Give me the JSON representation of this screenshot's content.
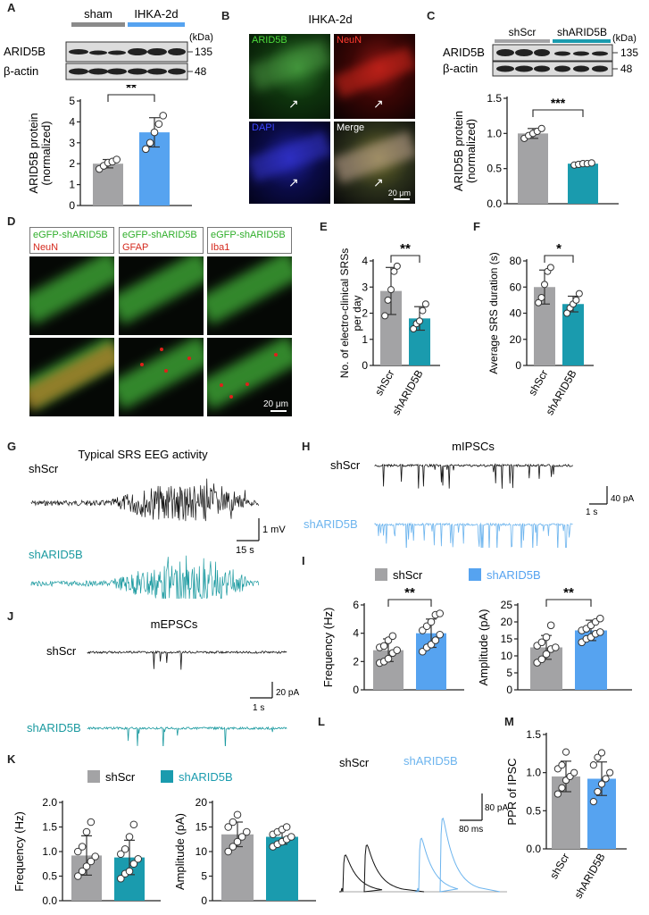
{
  "panel_letters": {
    "A": "A",
    "B": "B",
    "C": "C",
    "D": "D",
    "E": "E",
    "F": "F",
    "G": "G",
    "H": "H",
    "I": "I",
    "J": "J",
    "K": "K",
    "L": "L",
    "M": "M"
  },
  "colors": {
    "grey": "#a3a3a5",
    "blue": "#56a3f0",
    "teal": "#1a9bae",
    "tealtrace": "#1b9aa0",
    "black": "#111111",
    "lightblue": "#6cb4ee"
  },
  "panelA": {
    "groups": [
      "sham",
      "IHKA-2d"
    ],
    "rows": [
      "ARID5B",
      "β-actin"
    ],
    "kda_unit": "(kDa)",
    "kda": [
      "135",
      "48"
    ],
    "sig": "**"
  },
  "panelB": {
    "title": "IHKA-2d",
    "channels": [
      "ARID5B",
      "NeuN",
      "DAPI",
      "Merge"
    ],
    "scale": "20 μm"
  },
  "panelC": {
    "groups": [
      "shScr",
      "shARID5B"
    ],
    "rows": [
      "ARID5B",
      "β-actin"
    ],
    "kda_unit": "(kDa)",
    "kda": [
      "135",
      "48"
    ],
    "sig": "***"
  },
  "panelD": {
    "labels": [
      {
        "line1": "eGFP-shARID5B",
        "line2": "NeuN"
      },
      {
        "line1": "eGFP-shARID5B",
        "line2": "GFAP"
      },
      {
        "line1": "eGFP-shARID5B",
        "line2": "Iba1"
      }
    ],
    "scale": "20 μm"
  },
  "panelE": {
    "sig": "**"
  },
  "panelF": {
    "sig": "*"
  },
  "panelG": {
    "title": "Typical SRS EEG activity",
    "conditions": [
      "shScr",
      "shARID5B"
    ],
    "scale_y": "1 mV",
    "scale_x": "15 s"
  },
  "panelH": {
    "title": "mIPSCs",
    "conditions": [
      "shScr",
      "shARID5B"
    ],
    "scale_y": "40 pA",
    "scale_x": "1 s"
  },
  "panelI": {
    "legend": [
      "shScr",
      "shARID5B"
    ],
    "sig": [
      "**",
      "**"
    ]
  },
  "panelJ": {
    "title": "mEPSCs",
    "conditions": [
      "shScr",
      "shARID5B"
    ],
    "scale_y": "20 pA",
    "scale_x": "1 s"
  },
  "panelK": {
    "legend": [
      "shScr",
      "shARID5B"
    ]
  },
  "panelL": {
    "conditions": [
      "shScr",
      "shARID5B"
    ],
    "scale_y": "80 pA",
    "scale_x": "80 ms"
  },
  "chart_data": [
    {
      "id": "A",
      "type": "bar",
      "categories": [
        "sham",
        "IHKA-2d"
      ],
      "values": [
        2.0,
        3.5
      ],
      "errors": [
        0.2,
        0.7
      ],
      "ylabel": "ARID5B protein (normalized)",
      "ylim": [
        0,
        5
      ],
      "yticks": [
        0,
        1,
        2,
        3,
        4,
        5
      ],
      "points": [
        [
          1.75,
          1.9,
          2.05,
          2.1,
          2.2
        ],
        [
          2.7,
          3.0,
          3.5,
          3.9,
          4.3
        ]
      ]
    },
    {
      "id": "C",
      "type": "bar",
      "categories": [
        "shScr",
        "shARID5B"
      ],
      "values": [
        1.0,
        0.57
      ],
      "errors": [
        0.07,
        0.02
      ],
      "ylabel": "ARID5B protein (normalized)",
      "ylim": [
        0,
        1.5
      ],
      "yticks": [
        0.0,
        0.5,
        1.0,
        1.5
      ],
      "points": [
        [
          0.93,
          0.97,
          1.0,
          1.03,
          1.07
        ],
        [
          0.55,
          0.56,
          0.57,
          0.57,
          0.58
        ]
      ]
    },
    {
      "id": "E",
      "type": "bar",
      "categories": [
        "shScr",
        "shARID5B"
      ],
      "values": [
        2.85,
        1.8
      ],
      "errors": [
        0.9,
        0.45
      ],
      "ylabel": "No. of electro-clinical SRSs per day",
      "ylim": [
        0,
        4
      ],
      "yticks": [
        0,
        1,
        2,
        3,
        4
      ],
      "points": [
        [
          1.9,
          2.5,
          2.9,
          3.6,
          3.8
        ],
        [
          1.4,
          1.6,
          1.7,
          2.1,
          2.35
        ]
      ]
    },
    {
      "id": "F",
      "type": "bar",
      "categories": [
        "shScr",
        "shARID5B"
      ],
      "values": [
        60,
        47
      ],
      "errors": [
        13,
        6
      ],
      "ylabel": "Average SRS duration (s)",
      "ylim": [
        0,
        80
      ],
      "yticks": [
        0,
        20,
        40,
        60,
        80
      ],
      "points": [
        [
          48,
          52,
          62,
          72,
          75
        ],
        [
          40,
          44,
          47,
          50,
          55
        ]
      ]
    },
    {
      "id": "I-freq",
      "type": "bar",
      "categories": [
        "shScr",
        "shARID5B"
      ],
      "values": [
        2.8,
        4.0
      ],
      "errors": [
        0.8,
        1.0
      ],
      "ylabel": "Frequency (Hz)",
      "ylim": [
        0,
        6
      ],
      "yticks": [
        0,
        2,
        4,
        6
      ],
      "points": [
        [
          1.9,
          2.0,
          2.2,
          2.6,
          2.8,
          3.0,
          3.1,
          3.5,
          3.8
        ],
        [
          2.7,
          3.0,
          3.2,
          3.5,
          3.9,
          4.2,
          4.5,
          4.8,
          5.3,
          5.4
        ]
      ]
    },
    {
      "id": "I-amp",
      "type": "bar",
      "categories": [
        "shScr",
        "shARID5B"
      ],
      "values": [
        12.5,
        17.5
      ],
      "errors": [
        3.5,
        3.0
      ],
      "ylabel": "Amplitude (pA)",
      "ylim": [
        0,
        25
      ],
      "yticks": [
        0,
        5,
        10,
        15,
        20,
        25
      ],
      "points": [
        [
          8,
          9,
          10.5,
          12,
          12.5,
          13,
          14,
          15.5,
          19
        ],
        [
          14,
          15,
          15.5,
          16.5,
          17,
          17.5,
          18,
          19,
          20,
          21
        ]
      ]
    },
    {
      "id": "K-freq",
      "type": "bar",
      "categories": [
        "shScr",
        "shARID5B"
      ],
      "values": [
        0.92,
        0.88
      ],
      "errors": [
        0.4,
        0.35
      ],
      "ylabel": "Frequency (Hz)",
      "ylim": [
        0,
        2.0
      ],
      "yticks": [
        0.0,
        0.5,
        1.0,
        1.5,
        2.0
      ],
      "points": [
        [
          0.5,
          0.6,
          0.7,
          0.8,
          0.9,
          1.0,
          1.1,
          1.4,
          1.6
        ],
        [
          0.45,
          0.55,
          0.6,
          0.75,
          0.85,
          0.95,
          1.05,
          1.3,
          1.55
        ]
      ]
    },
    {
      "id": "K-amp",
      "type": "bar",
      "categories": [
        "shScr",
        "shARID5B"
      ],
      "values": [
        13.5,
        13.0
      ],
      "errors": [
        2.5,
        1.5
      ],
      "ylabel": "Amplitude (pA)",
      "ylim": [
        0,
        20
      ],
      "yticks": [
        0,
        5,
        10,
        15,
        20
      ],
      "points": [
        [
          10,
          11,
          12,
          13,
          14,
          15,
          16,
          17.5
        ],
        [
          11,
          11.5,
          12,
          12.5,
          13,
          13.5,
          14,
          14.5,
          15
        ]
      ]
    },
    {
      "id": "M",
      "type": "bar",
      "categories": [
        "shScr",
        "shARID5B"
      ],
      "values": [
        0.95,
        0.92
      ],
      "errors": [
        0.2,
        0.22
      ],
      "ylabel": "PPR of IPSC",
      "ylim": [
        0,
        1.5
      ],
      "yticks": [
        0.0,
        0.5,
        1.0,
        1.5
      ],
      "points": [
        [
          0.72,
          0.8,
          0.9,
          0.95,
          1.0,
          1.05,
          1.1,
          1.27
        ],
        [
          0.62,
          0.75,
          0.85,
          0.92,
          1.0,
          1.1,
          1.2,
          1.26
        ]
      ]
    }
  ]
}
